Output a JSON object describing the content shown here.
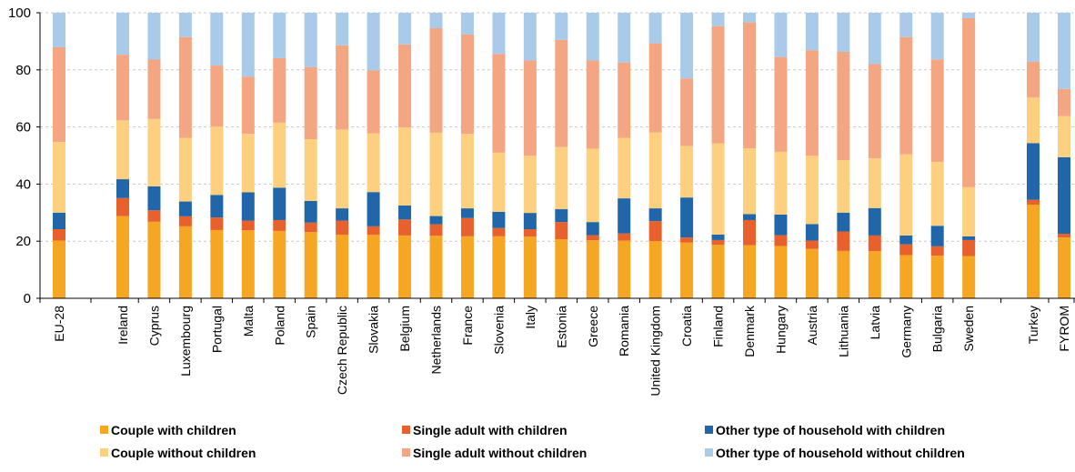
{
  "chart_data": {
    "type": "bar",
    "stacked": true,
    "title": "",
    "xlabel": "",
    "ylabel": "",
    "ylim": [
      0,
      100
    ],
    "yticks": [
      0,
      20,
      40,
      60,
      80,
      100
    ],
    "grid": "horizontal-dashed",
    "legend_position": "bottom",
    "categories": [
      "EU-28",
      "Ireland",
      "Cyprus",
      "Luxembourg",
      "Portugal",
      "Malta",
      "Poland",
      "Spain",
      "Czech Republic",
      "Slovakia",
      "Belgium",
      "Netherlands",
      "France",
      "Slovenia",
      "Italy",
      "Estonia",
      "Greece",
      "Romania",
      "United Kingdom",
      "Croatia",
      "Finland",
      "Denmark",
      "Hungary",
      "Austria",
      "Lithuania",
      "Latvia",
      "Germany",
      "Bulgaria",
      "Sweden",
      "Turkey",
      "FYROM"
    ],
    "series": [
      {
        "name": "Couple with children",
        "color": "#f5a623",
        "values": [
          20.2,
          28.8,
          26.8,
          25.2,
          23.9,
          23.8,
          23.6,
          23.2,
          22.2,
          22.2,
          22.0,
          21.9,
          21.7,
          21.7,
          21.6,
          20.7,
          20.3,
          20.2,
          20.0,
          19.5,
          18.7,
          18.6,
          18.3,
          17.3,
          16.6,
          16.5,
          15.1,
          14.9,
          14.8,
          32.8,
          21.3
        ]
      },
      {
        "name": "Single adult with children",
        "color": "#e8612c",
        "values": [
          4.0,
          6.3,
          4.0,
          3.5,
          4.4,
          3.4,
          3.8,
          3.3,
          5.0,
          3.0,
          5.6,
          4.0,
          6.4,
          2.9,
          2.6,
          6.0,
          1.8,
          2.5,
          7.0,
          1.8,
          1.7,
          8.8,
          3.8,
          2.9,
          6.8,
          5.5,
          3.8,
          3.3,
          5.6,
          1.7,
          1.3
        ]
      },
      {
        "name": "Other type of household with children",
        "color": "#2066a8",
        "values": [
          5.8,
          6.6,
          8.4,
          5.2,
          7.9,
          9.9,
          11.3,
          7.6,
          4.3,
          12.0,
          4.9,
          2.9,
          3.4,
          5.7,
          5.7,
          4.5,
          4.6,
          12.3,
          4.5,
          14.0,
          1.9,
          2.1,
          7.2,
          5.8,
          6.6,
          9.6,
          3.1,
          7.2,
          1.3,
          19.8,
          26.8
        ]
      },
      {
        "name": "Couple without children",
        "color": "#fcd07f",
        "values": [
          24.7,
          20.6,
          23.6,
          22.3,
          23.9,
          20.5,
          22.8,
          21.6,
          27.6,
          20.6,
          27.3,
          29.2,
          26.1,
          20.7,
          20.0,
          21.8,
          25.7,
          21.2,
          26.6,
          18.0,
          32.0,
          23.0,
          22.0,
          23.9,
          18.4,
          17.4,
          28.4,
          22.4,
          17.2,
          16.0,
          14.4
        ]
      },
      {
        "name": "Single adult without children",
        "color": "#f4a582",
        "values": [
          33.2,
          23.0,
          20.8,
          35.3,
          21.4,
          20.0,
          22.6,
          25.3,
          29.5,
          22.0,
          29.1,
          36.6,
          34.8,
          34.6,
          33.4,
          37.5,
          30.9,
          26.4,
          31.2,
          23.7,
          41.0,
          44.1,
          33.2,
          37.0,
          37.9,
          33.0,
          41.1,
          35.9,
          59.2,
          12.6,
          9.5
        ]
      },
      {
        "name": "Other type of household without children",
        "color": "#a9cbe9",
        "values": [
          12.1,
          14.7,
          16.4,
          8.5,
          18.5,
          22.4,
          15.9,
          19.0,
          11.4,
          20.2,
          11.1,
          5.4,
          7.6,
          14.4,
          16.7,
          9.5,
          16.7,
          17.4,
          10.7,
          23.0,
          4.7,
          3.4,
          15.5,
          13.1,
          13.7,
          18.0,
          8.5,
          16.3,
          1.9,
          17.1,
          26.7
        ]
      }
    ]
  }
}
